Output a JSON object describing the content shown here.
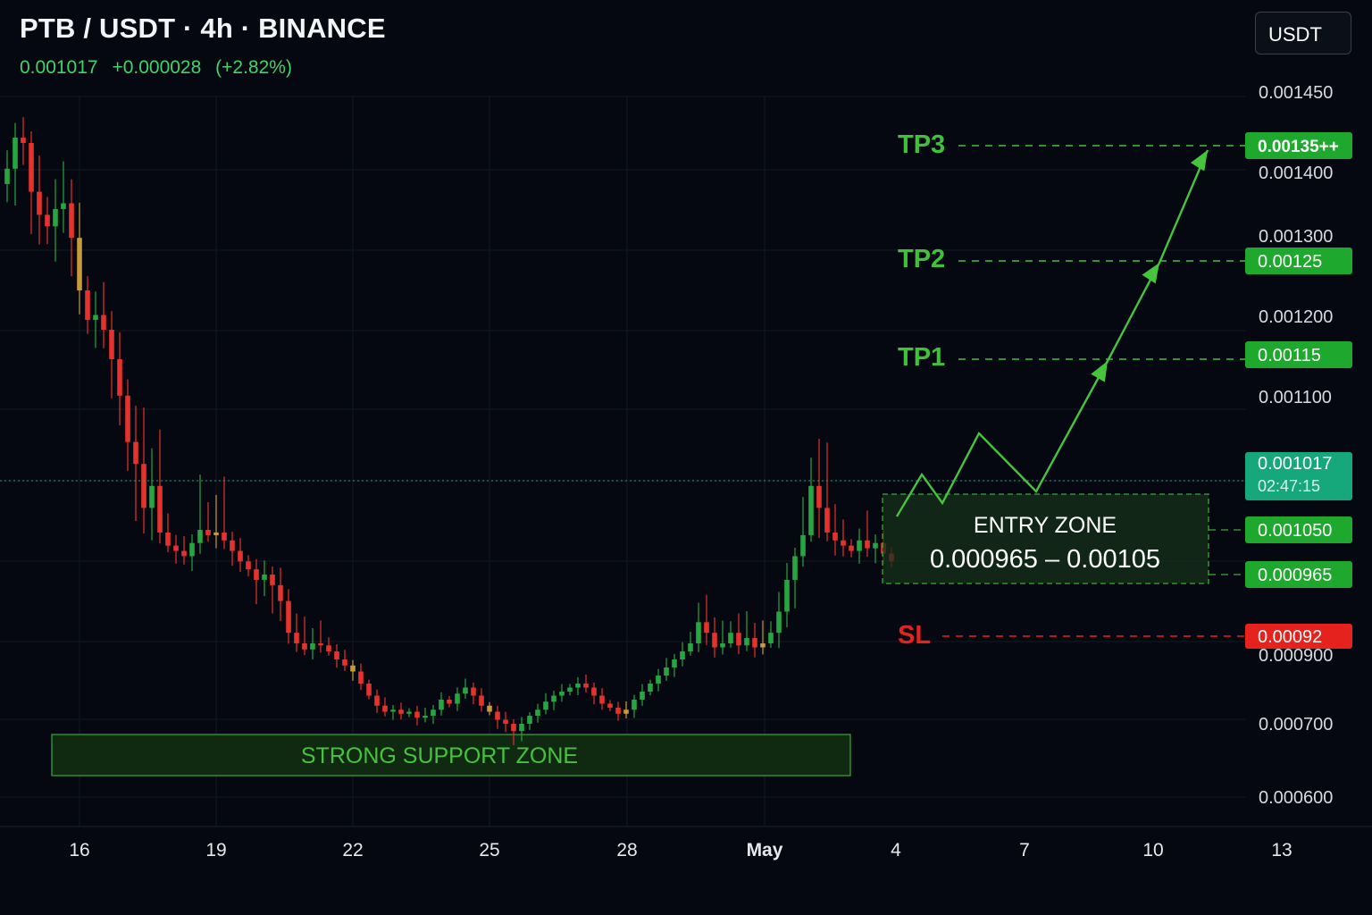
{
  "header": {
    "title": "PTB / USDT · 4h · BINANCE",
    "last_price": "0.001017",
    "change": "+0.000028",
    "change_pct": "(+2.82%)",
    "currency_button": "USDT"
  },
  "colors": {
    "background": "#050810",
    "up": "#26a641",
    "down": "#e5322d",
    "target": "#3fc23a",
    "stop": "#e5221e",
    "badge_current": "#16a87a"
  },
  "chart_data": {
    "type": "candlestick",
    "symbol": "PTB / USDT",
    "interval": "4h",
    "exchange": "BINANCE",
    "y_tick_labels": [
      "0.001450",
      "0.001400",
      "0.001300",
      "0.001200",
      "0.001100",
      "0.000900",
      "0.000700",
      "0.000600"
    ],
    "x_tick_labels": [
      "16",
      "19",
      "22",
      "25",
      "28",
      "May",
      "4",
      "7",
      "10",
      "13"
    ],
    "current_price": {
      "value": 0.001017,
      "label": "0.001017",
      "countdown": "02:47:15"
    },
    "targets": [
      {
        "name": "TP1",
        "value": 0.00115,
        "label": "0.00115"
      },
      {
        "name": "TP2",
        "value": 0.00125,
        "label": "0.00125"
      },
      {
        "name": "TP3",
        "value": 0.00135,
        "label": "0.00135++"
      }
    ],
    "stop_loss": {
      "name": "SL",
      "value": 0.00092,
      "label": "0.00092"
    },
    "entry_zone": {
      "title": "ENTRY ZONE",
      "range_text": "0.000965 – 0.00105",
      "low": 0.000965,
      "high": 0.00105,
      "low_label": "0.000965",
      "high_label": "0.001050"
    },
    "support_zone": {
      "label": "STRONG SUPPORT ZONE",
      "low": 0.00064,
      "high": 0.00068
    },
    "projection": {
      "comment": "projected zigzag path, values as (day offset from Apr 16, price)",
      "points": [
        [
          18.6,
          0.000985
        ],
        [
          19.1,
          0.00104
        ],
        [
          19.5,
          0.000995
        ],
        [
          20.4,
          0.00107
        ],
        [
          21.8,
          0.00101
        ],
        [
          24.3,
          0.00115
        ],
        [
          25.8,
          0.00125
        ],
        [
          27.3,
          0.00135
        ]
      ]
    },
    "candles_comment": "closes sampled from chart; day offset from Apr 16 implied by index",
    "closes": [
      0.00133,
      0.001365,
      0.001355,
      0.00131,
      0.00129,
      0.00128,
      0.001295,
      0.0013,
      0.00127,
      0.00122,
      0.00119,
      0.001195,
      0.00118,
      0.00115,
      0.00112,
      0.00109,
      0.00108,
      0.00106,
      0.00107,
      0.001045,
      0.00102,
      0.00101,
      0.001,
      0.001025,
      0.00105,
      0.00104,
      0.001045,
      0.00103,
      0.00101,
      0.00099,
      0.000975,
      0.00096,
      0.000965,
      0.000955,
      0.00094,
      0.00091,
      0.0009,
      0.000885,
      0.0009,
      0.000895,
      0.00088,
      0.00086,
      0.000845,
      0.00083,
      0.0008,
      0.00077,
      0.000745,
      0.00073,
      0.000735,
      0.000725,
      0.00073,
      0.000715,
      0.00072,
      0.000735,
      0.00076,
      0.00075,
      0.000775,
      0.00079,
      0.00077,
      0.000745,
      0.00073,
      0.00071,
      0.0007,
      0.00069,
      0.0007,
      0.00072,
      0.000735,
      0.000755,
      0.00077,
      0.00078,
      0.00079,
      0.0008,
      0.00079,
      0.00077,
      0.00075,
      0.00074,
      0.000725,
      0.000735,
      0.00076,
      0.00078,
      0.0008,
      0.00082,
      0.00084,
      0.00086,
      0.00088,
      0.0009,
      0.00092,
      0.00091,
      0.00089,
      0.0009,
      0.00091,
      0.000895,
      0.000905,
      0.00089,
      0.0009,
      0.00091,
      0.00093,
      0.00096,
      0.001,
      0.00104,
      0.00107,
      0.00106,
      0.001045,
      0.00103,
      0.00102,
      0.00101,
      0.00103,
      0.001015,
      0.001025,
      0.001005,
      0.00099
    ]
  }
}
